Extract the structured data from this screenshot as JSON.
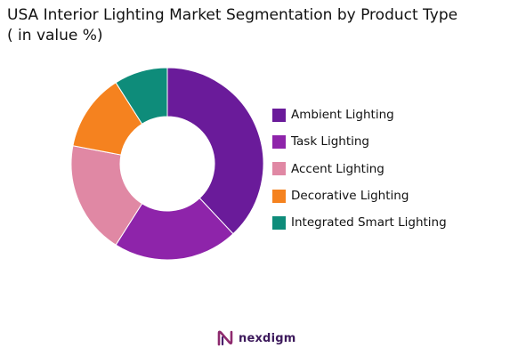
{
  "title": {
    "line1": "USA Interior Lighting Market Segmentation by Product Type",
    "line2": "( in value %)"
  },
  "chart_data": {
    "type": "pie",
    "donut": true,
    "title": "USA Interior Lighting Market Segmentation by Product Type ( in value %)",
    "labels": [
      "Ambient Lighting",
      "Task Lighting",
      "Accent Lighting",
      "Decorative Lighting",
      "Integrated Smart Lighting"
    ],
    "values": [
      38,
      21,
      19,
      13,
      9
    ],
    "colors": [
      "#6a1b9a",
      "#8e24aa",
      "#e088a4",
      "#f5821f",
      "#0e8c7a"
    ],
    "legend_position": "right"
  },
  "logo": {
    "text": "nexdigm",
    "icon": "nexdigm-logo-icon"
  }
}
